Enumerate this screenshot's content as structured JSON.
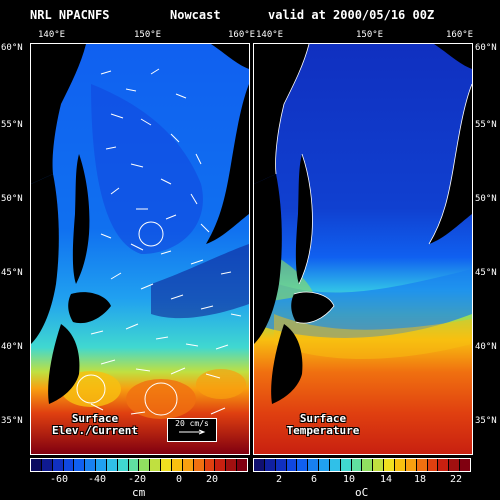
{
  "title": {
    "left": "NRL NPACNFS",
    "middle": "Nowcast",
    "right": "valid at 2000/05/16 00Z"
  },
  "lon_labels": [
    "140°E",
    "150°E",
    "160°E"
  ],
  "lat_labels": [
    "60°N",
    "55°N",
    "50°N",
    "45°N",
    "40°N",
    "35°N"
  ],
  "panels": {
    "left": {
      "label_line1": "Surface",
      "label_line2": "Elev./Current",
      "vector_legend": "20 cm/s",
      "colorbar_ticks": [
        "-60",
        "-40",
        "-20",
        "0",
        "20"
      ],
      "unit": "cm",
      "colors": [
        "#0a0a60",
        "#0f1a90",
        "#1030c0",
        "#1048e0",
        "#1060f0",
        "#1880f0",
        "#20a0f0",
        "#30c0e8",
        "#40d8d0",
        "#60e0a0",
        "#90e060",
        "#c0e040",
        "#f0e020",
        "#f8c010",
        "#f8a010",
        "#f07010",
        "#e04010",
        "#c82010",
        "#a01010",
        "#800010"
      ]
    },
    "right": {
      "label_line1": "Surface",
      "label_line2": "Temperature",
      "colorbar_ticks": [
        "2",
        "6",
        "10",
        "14",
        "18",
        "22"
      ],
      "unit": "oC",
      "colors": [
        "#101070",
        "#1020a0",
        "#1030c0",
        "#1048e0",
        "#1060f0",
        "#1880f0",
        "#20a0f0",
        "#30c0e8",
        "#40d8d0",
        "#60e0a0",
        "#90e060",
        "#c0e040",
        "#f0e020",
        "#f8c010",
        "#f8a010",
        "#f07010",
        "#e04010",
        "#c82010",
        "#a01010",
        "#800010"
      ]
    }
  }
}
